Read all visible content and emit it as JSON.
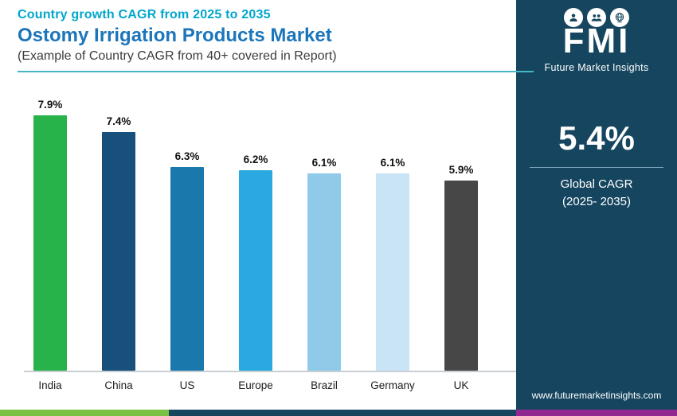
{
  "header": {
    "eyebrow": "Country growth CAGR from 2025 to 2035",
    "title": "Ostomy Irrigation Products Market",
    "subtitle": "(Example of Country CAGR from 40+ covered in Report)"
  },
  "chart_data": {
    "type": "bar",
    "title": "Country growth CAGR from 2025 to 2035",
    "categories": [
      "India",
      "China",
      "US",
      "Europe",
      "Brazil",
      "Germany",
      "UK"
    ],
    "values": [
      7.9,
      7.4,
      6.3,
      6.2,
      6.1,
      6.1,
      5.9
    ],
    "value_labels": [
      "7.9%",
      "7.4%",
      "6.3%",
      "6.2%",
      "6.1%",
      "6.1%",
      "5.9%"
    ],
    "bar_colors": [
      "#27b34a",
      "#17507a",
      "#1b78ad",
      "#2aa9e0",
      "#8fcae9",
      "#c8e4f5",
      "#474747"
    ],
    "xlabel": "",
    "ylabel": "",
    "ylim": [
      0,
      8.5
    ],
    "grid": false,
    "legend": false
  },
  "sidebar": {
    "logo": {
      "letters": "FMI",
      "brand": "Future Market Insights",
      "icons": [
        "analyst-icon",
        "people-icon",
        "globe-icon"
      ]
    },
    "stat": {
      "value": "5.4%",
      "label_line1": "Global CAGR",
      "label_line2": "(2025- 2035)"
    },
    "website": "www.futuremarketinsights.com"
  },
  "colors": {
    "eyebrow_text": "#00a7cc",
    "title_text": "#1b75bb",
    "header_divider": "#45b6c8",
    "panel_bg": "#16465f",
    "strip_segments": [
      "#7ac143",
      "#16465f",
      "#92278f"
    ]
  }
}
